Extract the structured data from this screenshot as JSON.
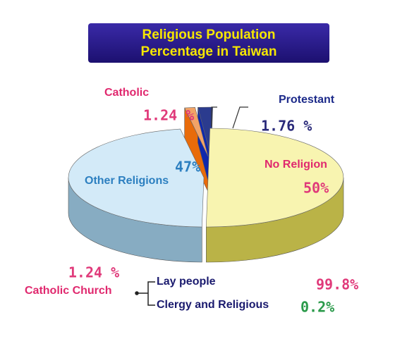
{
  "chart_data": {
    "type": "pie",
    "title_lines": [
      "Religious Population",
      "Percentage in Taiwan"
    ],
    "categories": [
      "No Religion",
      "Other Religions",
      "Catholic",
      "Protestant"
    ],
    "values": [
      50,
      47,
      1.24,
      1.76
    ],
    "value_labels": [
      "50%",
      "47%",
      "1.24 %",
      "1.76 %"
    ],
    "colors": [
      "#f8f4b0",
      "#d3eaf8",
      "#f2a366",
      "#2b3b8e"
    ]
  },
  "catholic_breakdown": {
    "name": "Catholic Church",
    "share": "1.24 %",
    "items": [
      {
        "name": "Lay people",
        "share": "99.8%"
      },
      {
        "name": "Clergy and Religious",
        "share": "0.2%"
      }
    ]
  }
}
